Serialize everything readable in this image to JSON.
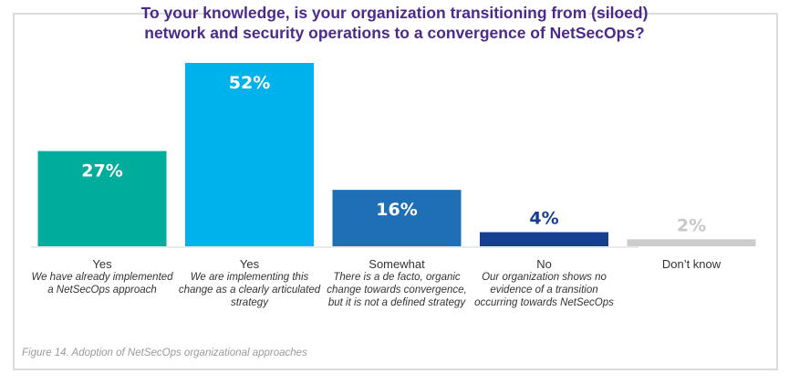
{
  "chart_data": {
    "type": "bar",
    "title": "To your knowledge, is your organization transitioning from (siloed) network and security operations to a convergence of NetSecOps?",
    "title_lines": [
      "To your knowledge, is your organization transitioning from (siloed)",
      "network and security operations to a convergence of NetSecOps?"
    ],
    "categories": [
      "Yes",
      "Yes",
      "Somewhat",
      "No",
      "Don’t know"
    ],
    "descriptions": [
      "We have already implemented a NetSecOps approach",
      "We are implementing this change as a clearly articulated strategy",
      "There is a de facto, organic change towards convergence, but it is not a defined strategy",
      "Our organization shows no evidence of a transition occurring towards NetSecOps",
      ""
    ],
    "values": [
      27,
      52,
      16,
      4,
      2
    ],
    "value_labels": [
      "27%",
      "52%",
      "16%",
      "4%",
      "2%"
    ],
    "colors": [
      "#00ad9c",
      "#00b2ec",
      "#1e6fb5",
      "#173f91",
      "#cccccc"
    ],
    "label_colors": [
      "#ffffff",
      "#ffffff",
      "#ffffff",
      "#173f91",
      "#c8c8c8"
    ],
    "xlabel": "",
    "ylabel": "",
    "ylim": [
      0,
      52
    ],
    "grid": false,
    "legend": "none",
    "caption": "Figure 14. Adoption of NetSecOps organizational approaches"
  }
}
